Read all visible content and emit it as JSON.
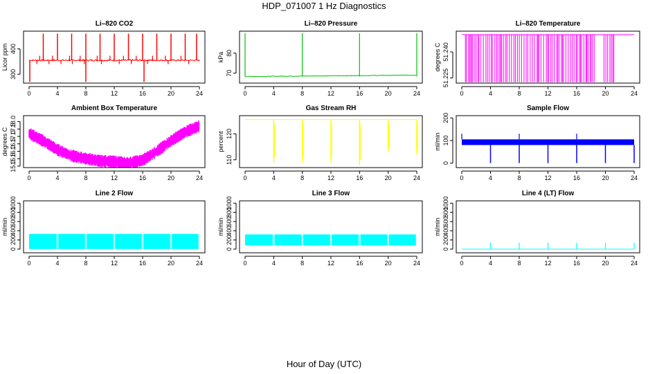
{
  "figure_title": "HDP_071007  1 Hz Diagnostics",
  "x_axis_label": "Hour of Day (UTC)",
  "chart_data": [
    {
      "id": "co2",
      "type": "line",
      "title": "Li–820 CO2",
      "ylabel": "Licor ppm",
      "color": "#ff0000",
      "xlim": [
        0,
        24
      ],
      "x_ticks": [
        0,
        4,
        8,
        12,
        16,
        20,
        24
      ],
      "x_tick_labels": [
        "0",
        "4",
        "8",
        "12",
        "16",
        "20",
        "24"
      ],
      "ylim": [
        265,
        470
      ],
      "y_ticks": [
        300,
        400
      ],
      "y_tick_labels": [
        "300",
        "400"
      ],
      "baseline": 355,
      "noise": 3,
      "spike_hours": [
        2,
        4,
        6,
        8,
        10,
        12,
        14,
        16,
        18,
        20,
        22,
        23.6
      ],
      "spike_value": 460,
      "dip_hours": [
        0.1,
        8,
        16.2
      ],
      "dip_value": 270
    },
    {
      "id": "pressure",
      "type": "line",
      "title": "Li–820 Pressure",
      "ylabel": "kPa",
      "color": "#00c000",
      "xlim": [
        0,
        24
      ],
      "x_ticks": [
        0,
        4,
        8,
        12,
        16,
        20,
        24
      ],
      "x_tick_labels": [
        "0",
        "4",
        "8",
        "12",
        "16",
        "20",
        "24"
      ],
      "ylim": [
        65,
        91
      ],
      "y_ticks": [
        70,
        80
      ],
      "y_tick_labels": [
        "70",
        "80"
      ],
      "baseline_start": 68.3,
      "baseline_end": 69.0,
      "spike_hours": [
        0,
        8,
        16,
        24
      ],
      "spike_value": 90
    },
    {
      "id": "licor_temp",
      "type": "line",
      "title": "Li–820 Temperature",
      "ylabel": "degrees C",
      "color": "#ff00ff",
      "xlim": [
        0,
        24
      ],
      "x_ticks": [
        0,
        4,
        8,
        12,
        16,
        20,
        24
      ],
      "x_tick_labels": [
        "0",
        "4",
        "8",
        "12",
        "16",
        "20",
        "24"
      ],
      "ylim": [
        51.222,
        51.252
      ],
      "y_ticks": [
        51.225,
        51.24
      ],
      "y_tick_labels": [
        "51.225",
        "51.240"
      ],
      "high_value": 51.25,
      "low_value": 51.2225,
      "toggle_ranges": [
        [
          0.5,
          18.5
        ],
        [
          19.8,
          21.2
        ]
      ]
    },
    {
      "id": "ambient_temp",
      "type": "line",
      "title": "Ambient Box Temperature",
      "ylabel": "degrees C",
      "color": "#ff00ff",
      "xlim": [
        0,
        24
      ],
      "x_ticks": [
        0,
        4,
        8,
        12,
        16,
        20,
        24
      ],
      "x_tick_labels": [
        "0",
        "4",
        "8",
        "12",
        "16",
        "20",
        "24"
      ],
      "ylim": [
        14.9,
        18.4
      ],
      "y_ticks": [
        15.0,
        15.5,
        16.0,
        16.5,
        17.0,
        17.5,
        18.0
      ],
      "y_tick_labels": [
        "15.0",
        "15.5",
        "16.0",
        "16.5",
        "17.0",
        "17.5",
        "18.0"
      ],
      "curve": [
        [
          0,
          17.2
        ],
        [
          2,
          16.7
        ],
        [
          4,
          16.1
        ],
        [
          6,
          15.7
        ],
        [
          8,
          15.5
        ],
        [
          10,
          15.35
        ],
        [
          12,
          15.3
        ],
        [
          14,
          15.2
        ],
        [
          16,
          15.4
        ],
        [
          18,
          16.0
        ],
        [
          20,
          16.7
        ],
        [
          22,
          17.3
        ],
        [
          24,
          17.7
        ]
      ],
      "band": 0.35
    },
    {
      "id": "rh",
      "type": "line",
      "title": "Gas Stream RH",
      "ylabel": "percent",
      "color": "#ffff00",
      "xlim": [
        0,
        24
      ],
      "x_ticks": [
        0,
        4,
        8,
        12,
        16,
        20,
        24
      ],
      "x_tick_labels": [
        "0",
        "4",
        "8",
        "12",
        "16",
        "20",
        "24"
      ],
      "ylim": [
        107,
        127
      ],
      "y_ticks": [
        110,
        120
      ],
      "y_tick_labels": [
        "110",
        "120"
      ],
      "baseline": 125.5,
      "dip_hours": [
        4,
        8,
        12,
        16,
        20,
        24
      ],
      "dip_values": [
        109,
        109,
        109,
        108,
        113,
        112
      ]
    },
    {
      "id": "sample_flow",
      "type": "line",
      "title": "Sample Flow",
      "ylabel": "ml/min",
      "color": "#0000ff",
      "xlim": [
        0,
        24
      ],
      "x_ticks": [
        0,
        4,
        8,
        12,
        16,
        20,
        24
      ],
      "x_tick_labels": [
        "0",
        "4",
        "8",
        "12",
        "16",
        "20",
        "24"
      ],
      "ylim": [
        -20,
        210
      ],
      "y_ticks": [
        0,
        100,
        200
      ],
      "y_tick_labels": [
        "0",
        "100",
        "200"
      ],
      "band_low": 80,
      "band_high": 105,
      "dip_hours": [
        4,
        8,
        12,
        16,
        20,
        24
      ],
      "dip_value": 0,
      "spike_hours": [
        0,
        8,
        16
      ],
      "spike_value": 130
    },
    {
      "id": "line2_flow",
      "type": "line",
      "title": "Line 2 Flow",
      "ylabel": "ml/min",
      "color": "#00ffff",
      "xlim": [
        0,
        24
      ],
      "x_ticks": [
        0,
        4,
        8,
        12,
        16,
        20,
        24
      ],
      "x_tick_labels": [
        "0",
        "4",
        "8",
        "12",
        "16",
        "20",
        "24"
      ],
      "ylim": [
        -80,
        1050
      ],
      "y_ticks": [
        0,
        200,
        400,
        600,
        800,
        1000
      ],
      "y_tick_labels": [
        "0",
        "200",
        "400",
        "600",
        "800",
        "1000"
      ],
      "band_low": 0,
      "band_high": 330,
      "gap_hours": [
        4,
        8,
        12,
        16,
        20
      ]
    },
    {
      "id": "line3_flow",
      "type": "line",
      "title": "Line 3 Flow",
      "ylabel": "ml/min",
      "color": "#00ffff",
      "xlim": [
        0,
        24
      ],
      "x_ticks": [
        0,
        4,
        8,
        12,
        16,
        20,
        24
      ],
      "x_tick_labels": [
        "0",
        "4",
        "8",
        "12",
        "16",
        "20",
        "24"
      ],
      "ylim": [
        -80,
        1050
      ],
      "y_ticks": [
        0,
        200,
        400,
        600,
        800,
        1000
      ],
      "y_tick_labels": [
        "0",
        "200",
        "400",
        "600",
        "800",
        "1000"
      ],
      "band_low": 80,
      "band_high": 320,
      "gap_hours": [
        4,
        8,
        12,
        16,
        20
      ]
    },
    {
      "id": "line4_flow",
      "type": "line",
      "title": "Line 4 (LT) Flow",
      "ylabel": "ml/min",
      "color": "#00ffff",
      "xlim": [
        0,
        24
      ],
      "x_ticks": [
        0,
        4,
        8,
        12,
        16,
        20,
        24
      ],
      "x_tick_labels": [
        "0",
        "4",
        "8",
        "12",
        "16",
        "20",
        "24"
      ],
      "ylim": [
        -80,
        1050
      ],
      "y_ticks": [
        0,
        200,
        400,
        600,
        800,
        1000
      ],
      "y_tick_labels": [
        "0",
        "200",
        "400",
        "600",
        "800",
        "1000"
      ],
      "baseline": 0,
      "spike_hours": [
        4,
        8,
        12,
        16,
        20,
        24
      ],
      "spike_value": 140
    }
  ]
}
